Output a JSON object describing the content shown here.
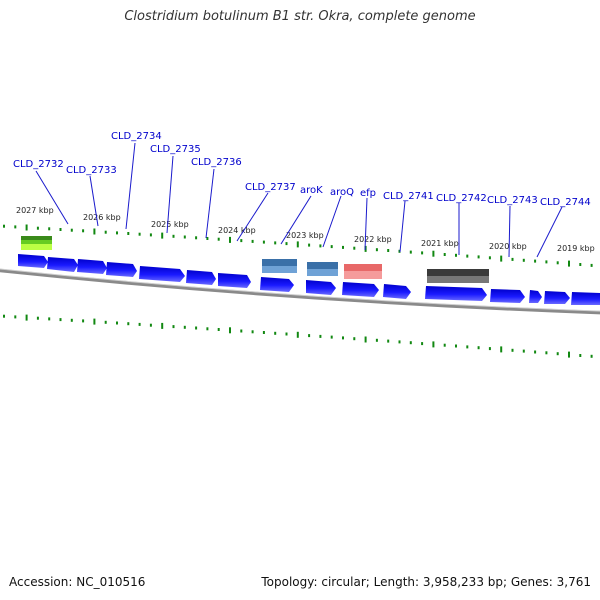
{
  "title": "Clostridium botulinum B1 str. Okra, complete genome",
  "colors": {
    "gene_label": "#0000cc",
    "label_line": "#1a1acc",
    "cds": "#0000ee",
    "tick": "#118811",
    "backbone": "#777777"
  },
  "gene_labels": [
    "CLD_2732",
    "CLD_2733",
    "CLD_2734",
    "CLD_2735",
    "CLD_2736",
    "CLD_2737",
    "aroK",
    "aroQ",
    "efp",
    "CLD_2741",
    "CLD_2742",
    "CLD_2743",
    "CLD_2744"
  ],
  "position_labels": [
    "2027 kbp",
    "2026 kbp",
    "2025 kbp",
    "2024 kbp",
    "2023 kbp",
    "2022 kbp",
    "2021 kbp",
    "2020 kbp",
    "2019 kbp"
  ],
  "feature_bars": [
    {
      "name": "green-feature",
      "color": "#55cc22"
    },
    {
      "name": "steelblue-feature-1",
      "color": "#4a80b8"
    },
    {
      "name": "steelblue-feature-2",
      "color": "#4a80b8"
    },
    {
      "name": "salmon-feature",
      "color": "#ee7777"
    },
    {
      "name": "grey-feature",
      "color": "#555555"
    }
  ],
  "footer": {
    "accession": "Accession: NC_010516",
    "summary": "Topology: circular; Length: 3,958,233 bp; Genes: 3,761"
  }
}
